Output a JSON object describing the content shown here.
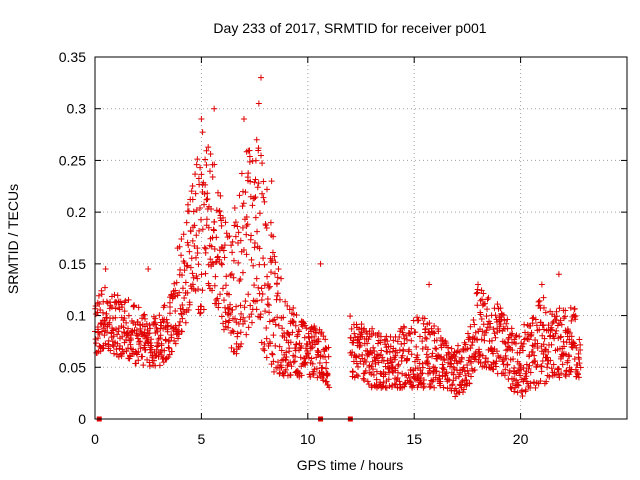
{
  "chart_data": {
    "type": "scatter",
    "title": "Day 233 of 2017, SRMTID for receiver p001",
    "xlabel": "GPS time / hours",
    "ylabel": "SRMTID / TECUs",
    "xlim": [
      0,
      25
    ],
    "ylim": [
      0,
      0.35
    ],
    "xticks": [
      0,
      5,
      10,
      15,
      20
    ],
    "yticks": [
      0,
      0.05,
      0.1,
      0.15,
      0.2,
      0.25,
      0.3,
      0.35
    ],
    "ytick_labels": [
      "0",
      "0.05",
      "0.1",
      "0.15",
      "0.2",
      "0.25",
      "0.3",
      "0.35"
    ],
    "grid": true,
    "marker": "+",
    "series": [
      {
        "name": "SRMTID",
        "color": "#e00000",
        "envelope_x": [
          0,
          0.5,
          1,
          1.5,
          2,
          2.5,
          3,
          3.5,
          4,
          4.5,
          5,
          5.5,
          6,
          6.5,
          7,
          7.5,
          8,
          8.5,
          9,
          9.5,
          10,
          10.5,
          11
        ],
        "envelope_low": [
          0.06,
          0.07,
          0.06,
          0.06,
          0.05,
          0.05,
          0.05,
          0.06,
          0.08,
          0.1,
          0.1,
          0.12,
          0.09,
          0.06,
          0.07,
          0.08,
          0.06,
          0.04,
          0.04,
          0.04,
          0.04,
          0.04,
          0.03
        ],
        "envelope_high": [
          0.12,
          0.13,
          0.12,
          0.12,
          0.11,
          0.1,
          0.1,
          0.12,
          0.18,
          0.22,
          0.28,
          0.26,
          0.22,
          0.2,
          0.26,
          0.28,
          0.24,
          0.16,
          0.12,
          0.1,
          0.09,
          0.09,
          0.07
        ],
        "envelope2_x": [
          12,
          12.5,
          13,
          13.5,
          14,
          14.5,
          15,
          15.5,
          16,
          16.5,
          17,
          17.5,
          18,
          18.5,
          19,
          19.5,
          20,
          20.5,
          21,
          21.5,
          22,
          22.5,
          22.8
        ],
        "envelope2_low": [
          0.04,
          0.04,
          0.03,
          0.03,
          0.03,
          0.03,
          0.03,
          0.03,
          0.03,
          0.03,
          0.02,
          0.03,
          0.05,
          0.05,
          0.04,
          0.03,
          0.02,
          0.03,
          0.03,
          0.04,
          0.04,
          0.04,
          0.04
        ],
        "envelope2_high": [
          0.09,
          0.1,
          0.09,
          0.08,
          0.08,
          0.09,
          0.1,
          0.1,
          0.09,
          0.08,
          0.07,
          0.08,
          0.13,
          0.12,
          0.11,
          0.1,
          0.09,
          0.1,
          0.12,
          0.11,
          0.11,
          0.11,
          0.1
        ],
        "peaks": [
          {
            "x": 5.0,
            "y": 0.29
          },
          {
            "x": 5.6,
            "y": 0.3
          },
          {
            "x": 7.0,
            "y": 0.29
          },
          {
            "x": 7.6,
            "y": 0.27
          },
          {
            "x": 7.8,
            "y": 0.33
          },
          {
            "x": 7.7,
            "y": 0.305
          },
          {
            "x": 8.3,
            "y": 0.23
          },
          {
            "x": 10.6,
            "y": 0.15
          },
          {
            "x": 2.5,
            "y": 0.145
          },
          {
            "x": 0.5,
            "y": 0.145
          },
          {
            "x": 18.0,
            "y": 0.13
          },
          {
            "x": 21.0,
            "y": 0.13
          },
          {
            "x": 21.8,
            "y": 0.14
          },
          {
            "x": 15.7,
            "y": 0.13
          }
        ],
        "zero_markers_x": [
          0.2,
          10.6,
          12.0
        ]
      }
    ]
  }
}
